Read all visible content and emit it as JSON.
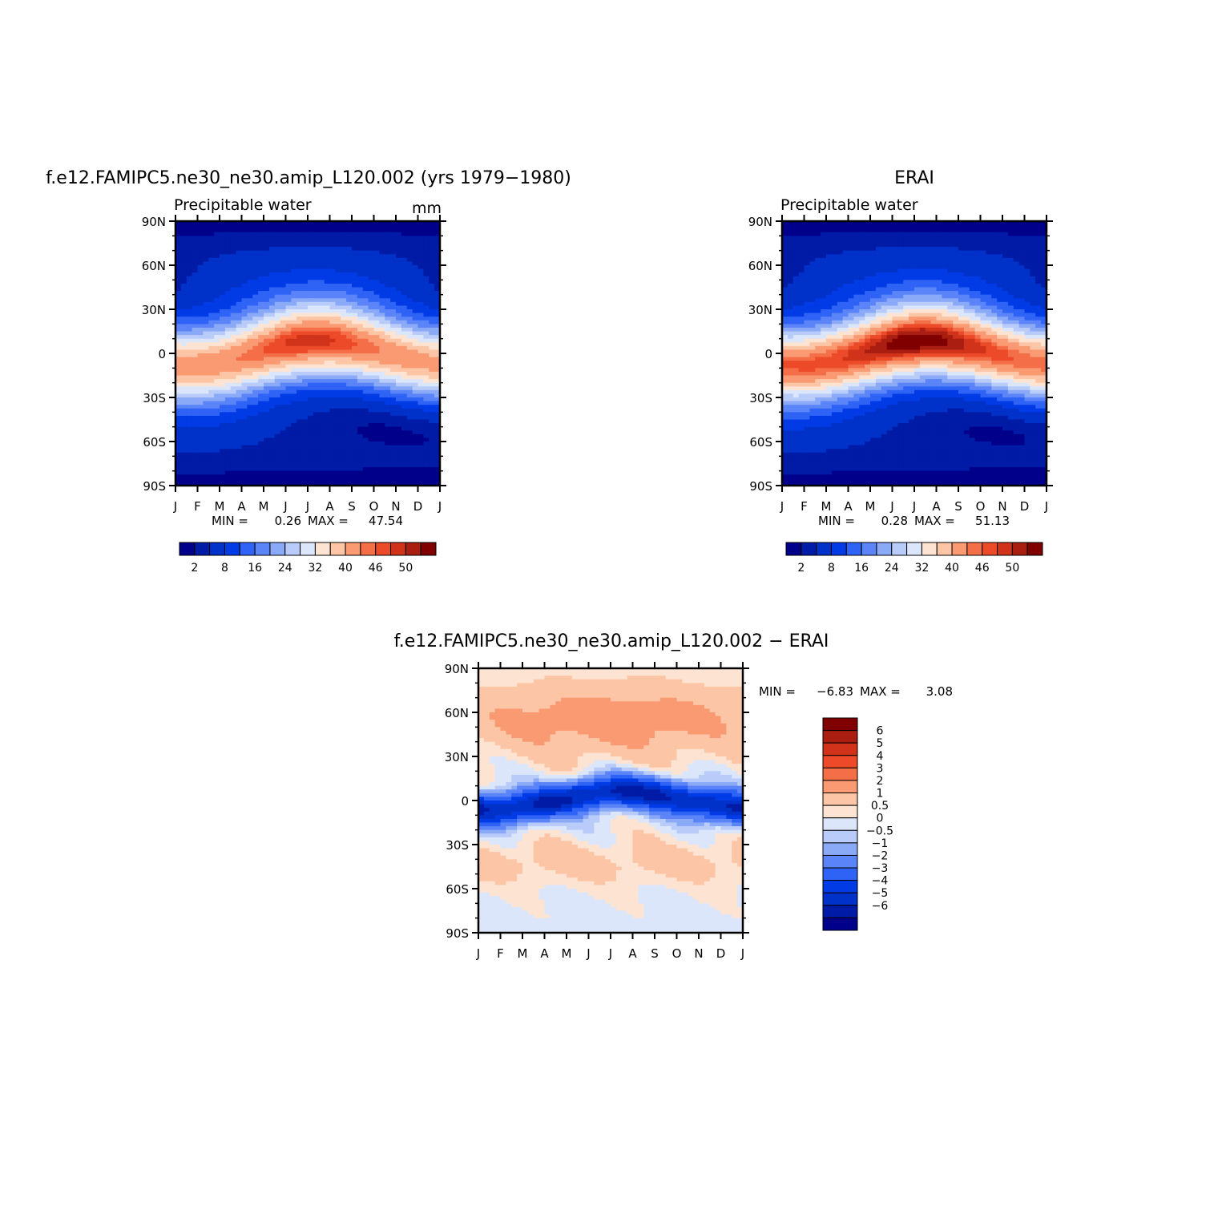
{
  "colors": {
    "precip_scale": [
      "#00008b",
      "#001ba6",
      "#0031c8",
      "#003be6",
      "#2e63f5",
      "#5a84f7",
      "#8aaaf8",
      "#b8cbf9",
      "#dbe6fb",
      "#fde4d2",
      "#fcc6a6",
      "#f99a73",
      "#f46e48",
      "#ec4a28",
      "#d0321a",
      "#a91e10",
      "#800000"
    ],
    "diff_scale": [
      "#00008b",
      "#001ba6",
      "#0031c8",
      "#003be6",
      "#2e63f5",
      "#5a84f7",
      "#8aaaf8",
      "#b8cbf9",
      "#dbe6fb",
      "#fde4d2",
      "#fcc6a6",
      "#f99a73",
      "#f46e48",
      "#ec4a28",
      "#d0321a",
      "#a91e10",
      "#800000"
    ]
  },
  "chart_data": [
    {
      "type": "heatmap",
      "title": "f.e12.FAMIPC5.ne30_ne30.amip_L120.002 (yrs 1979−1980)",
      "subtitle": "Precipitable water",
      "units": "mm",
      "x_ticks": [
        "J",
        "F",
        "M",
        "A",
        "M",
        "J",
        "J",
        "A",
        "S",
        "O",
        "N",
        "D",
        "J"
      ],
      "y_ticks": [
        "90N",
        "60N",
        "30N",
        "0",
        "30S",
        "60S",
        "90S"
      ],
      "ylim": [
        -90,
        90
      ],
      "min_label": "MIN =",
      "min_value": "0.26",
      "max_label": "MAX =",
      "max_value": "47.54",
      "min": 0.26,
      "max": 47.54,
      "levels": [
        2,
        4,
        8,
        12,
        16,
        20,
        24,
        28,
        32,
        36,
        40,
        44,
        46,
        48,
        50,
        52
      ],
      "colorbar_labels": [
        "2",
        "8",
        "16",
        "24",
        "32",
        "40",
        "46",
        "50"
      ]
    },
    {
      "type": "heatmap",
      "title": "ERAI",
      "subtitle": "Precipitable water",
      "x_ticks": [
        "J",
        "F",
        "M",
        "A",
        "M",
        "J",
        "J",
        "A",
        "S",
        "O",
        "N",
        "D",
        "J"
      ],
      "y_ticks": [
        "90N",
        "60N",
        "30N",
        "0",
        "30S",
        "60S",
        "90S"
      ],
      "ylim": [
        -90,
        90
      ],
      "min_label": "MIN =",
      "min_value": "0.28",
      "max_label": "MAX =",
      "max_value": "51.13",
      "min": 0.28,
      "max": 51.13,
      "levels": [
        2,
        4,
        8,
        12,
        16,
        20,
        24,
        28,
        32,
        36,
        40,
        44,
        46,
        48,
        50,
        52
      ],
      "colorbar_labels": [
        "2",
        "8",
        "16",
        "24",
        "32",
        "40",
        "46",
        "50"
      ]
    },
    {
      "type": "heatmap",
      "title": "f.e12.FAMIPC5.ne30_ne30.amip_L120.002 − ERAI",
      "x_ticks": [
        "J",
        "F",
        "M",
        "A",
        "M",
        "J",
        "J",
        "A",
        "S",
        "O",
        "N",
        "D",
        "J"
      ],
      "y_ticks": [
        "90N",
        "60N",
        "30N",
        "0",
        "30S",
        "60S",
        "90S"
      ],
      "ylim": [
        -90,
        90
      ],
      "min_label": "MIN =",
      "min_value": "−6.83",
      "max_label": "MAX =",
      "max_value": "3.08",
      "min": -6.83,
      "max": 3.08,
      "levels": [
        -6,
        -5,
        -4,
        -3,
        -2,
        -1,
        -0.5,
        0,
        0.5,
        1,
        2,
        3,
        4,
        5,
        6
      ],
      "colorbar_labels": [
        "6",
        "5",
        "4",
        "3",
        "2",
        "1",
        "0.5",
        "0",
        "−0.5",
        "−1",
        "−2",
        "−3",
        "−4",
        "−5",
        "−6"
      ]
    }
  ]
}
